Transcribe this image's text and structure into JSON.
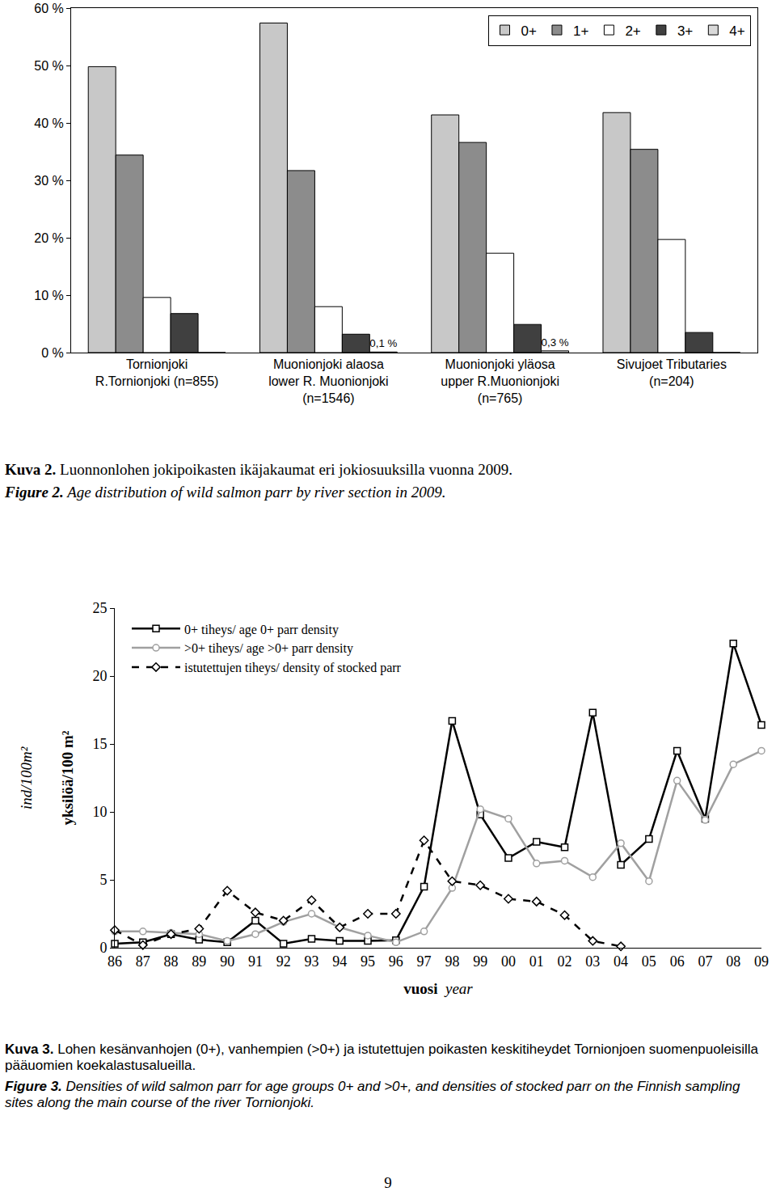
{
  "chart_data": [
    {
      "type": "bar",
      "categories": [
        "Tornionjoki\nR.Tornionjoki (n=855)",
        "Muonionjoki alaosa\nlower R. Muonionjoki\n(n=1546)",
        "Muonionjoki yläosa\nupper R.Muonionjoki\n(n=765)",
        "Sivujoet Tributaries\n(n=204)"
      ],
      "series": [
        {
          "name": "0+",
          "color": "#c8c8c8",
          "values": [
            49.8,
            57.4,
            41.4,
            41.8
          ]
        },
        {
          "name": "1+",
          "color": "#8c8c8c",
          "values": [
            34.4,
            31.7,
            36.6,
            35.4
          ]
        },
        {
          "name": "2+",
          "color": "#ffffff",
          "values": [
            9.6,
            8.0,
            17.3,
            19.7
          ]
        },
        {
          "name": "3+",
          "color": "#404040",
          "values": [
            6.8,
            3.2,
            4.9,
            3.5
          ]
        },
        {
          "name": "4+",
          "color": "#d9d9d9",
          "values": [
            0,
            0.1,
            0.3,
            0
          ],
          "value_labels": [
            null,
            "0,1 %",
            "0,3 %",
            null
          ]
        }
      ],
      "ylim": [
        0,
        60
      ],
      "yticks": [
        {
          "value": 0,
          "label": "0 %"
        },
        {
          "value": 10,
          "label": "10 %"
        },
        {
          "value": 20,
          "label": "20 %"
        },
        {
          "value": 30,
          "label": "30 %"
        },
        {
          "value": 40,
          "label": "40 %"
        },
        {
          "value": 50,
          "label": "50 %"
        },
        {
          "value": 60,
          "label": "60 %"
        }
      ],
      "grid": false,
      "legend": "top right"
    },
    {
      "type": "line",
      "categories": [
        "86",
        "87",
        "88",
        "89",
        "90",
        "91",
        "92",
        "93",
        "94",
        "95",
        "96",
        "97",
        "98",
        "99",
        "00",
        "01",
        "02",
        "03",
        "04",
        "05",
        "06",
        "07",
        "08",
        "09"
      ],
      "series": [
        {
          "name": "0+ tiheys/ age 0+ parr density",
          "color": "#000000",
          "marker": "square",
          "line_style": "solid",
          "values": [
            0.3,
            0.4,
            1.0,
            0.6,
            0.4,
            2.0,
            0.3,
            0.65,
            0.5,
            0.5,
            0.55,
            4.5,
            16.7,
            9.8,
            6.6,
            7.8,
            7.4,
            17.3,
            6.1,
            8.0,
            14.5,
            9.5,
            22.4,
            16.4
          ]
        },
        {
          "name": ">0+ tiheys/ age >0+ parr density",
          "color": "#a0a0a0",
          "marker": "circle",
          "line_style": "solid",
          "values": [
            1.2,
            1.2,
            1.1,
            1.0,
            0.5,
            1.0,
            1.9,
            2.5,
            1.5,
            0.9,
            0.4,
            1.2,
            4.4,
            10.2,
            9.5,
            6.2,
            6.4,
            5.2,
            7.7,
            4.9,
            12.3,
            9.4,
            13.5,
            14.5
          ]
        },
        {
          "name": "istutettujen tiheys/ density of stocked parr",
          "color": "#000000",
          "marker": "diamond",
          "line_style": "dash",
          "values": [
            1.3,
            0.2,
            1.0,
            1.4,
            4.2,
            2.6,
            2.0,
            3.5,
            1.5,
            2.5,
            2.5,
            7.9,
            4.9,
            4.6,
            3.6,
            3.4,
            2.4,
            0.5,
            0.1,
            null,
            null,
            null,
            null,
            null
          ]
        }
      ],
      "xlabel": [
        "vuosi",
        "year"
      ],
      "ylabel": [
        "yksilöä/100 m²",
        "ind/100m²"
      ],
      "ylim": [
        0,
        25
      ],
      "yticks": [
        0,
        5,
        10,
        15,
        20,
        25
      ],
      "grid": false,
      "legend": "top left"
    }
  ],
  "captions": [
    [
      {
        "label": "Kuva 2.",
        "text": "Luonnonlohen jokipoikasten ikäjakaumat eri jokiosuuksilla vuonna 2009."
      },
      {
        "label": "Figure 2.",
        "text": "Age distribution of wild salmon parr by river section in 2009."
      }
    ],
    [
      {
        "label": "Kuva 3.",
        "text": "Lohen kesänvanhojen (0+), vanhempien (>0+) ja istutettujen poikasten keskitiheydet Tornionjoen suomenpuoleisilla pääuomien koekalastusalueilla."
      },
      {
        "label": "Figure 3.",
        "text": "Densities of wild salmon parr for age groups 0+ and >0+, and densities of stocked parr on the Finnish sampling sites along the main course of the river Tornionjoki."
      }
    ]
  ],
  "page_number": 9
}
